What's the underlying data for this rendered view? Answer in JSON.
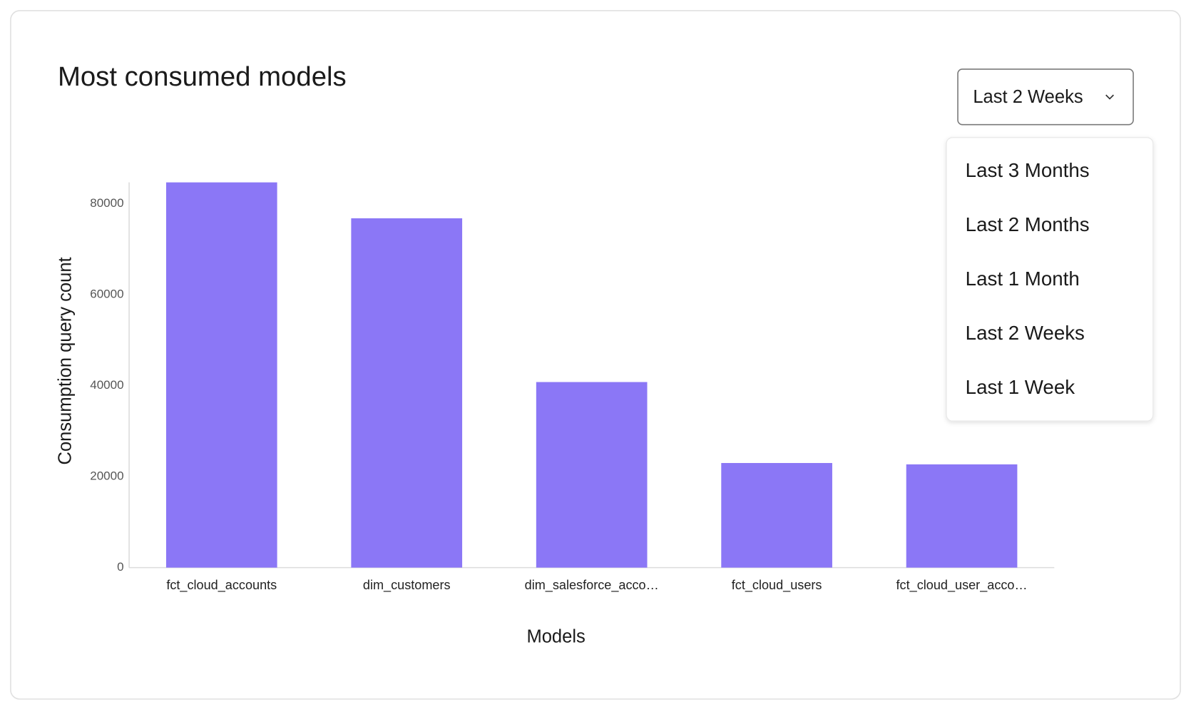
{
  "chart_data": {
    "type": "bar",
    "title": "Most consumed models",
    "x_label": "Models",
    "y_label": "Consumption query count",
    "categories": [
      "fct_cloud_accounts",
      "dim_customers",
      "dim_salesforce_acco…",
      "fct_cloud_users",
      "fct_cloud_user_acco…"
    ],
    "values": [
      84700,
      76800,
      40800,
      23000,
      22700
    ],
    "color": "#8b77f6",
    "ylim": [
      0,
      84700
    ],
    "yticks": [
      0,
      20000,
      40000,
      60000,
      80000
    ],
    "grid": false
  },
  "dropdown": {
    "selected": "Last 2 Weeks",
    "options": [
      "Last 3 Months",
      "Last 2 Months",
      "Last 1 Month",
      "Last 2 Weeks",
      "Last 1 Week"
    ]
  }
}
